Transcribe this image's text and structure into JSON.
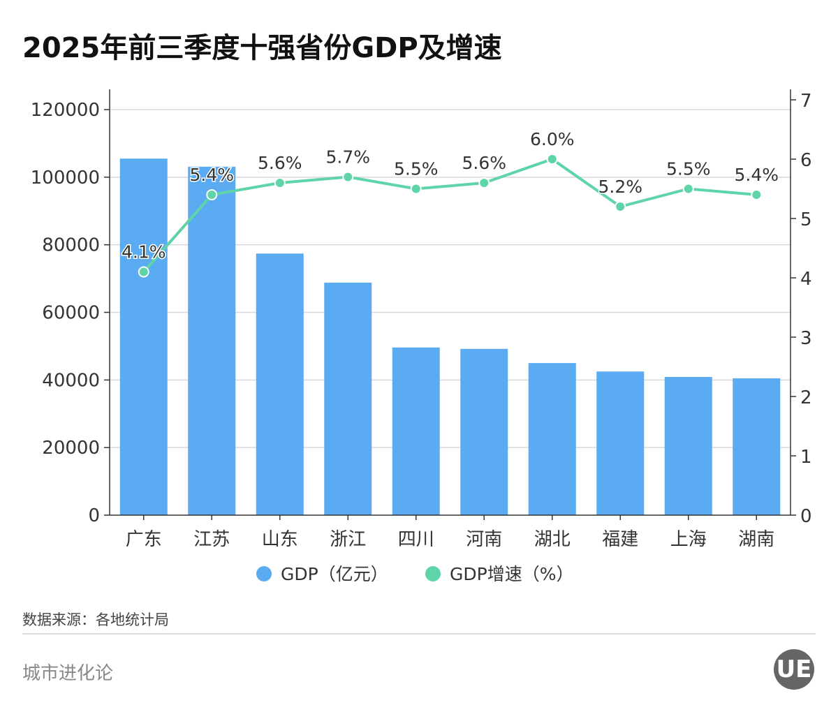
{
  "chart_data": {
    "type": "bar+line",
    "title": "2025年前三季度十强省份GDP及增速",
    "categories": [
      "广东",
      "江苏",
      "山东",
      "浙江",
      "四川",
      "河南",
      "湖北",
      "福建",
      "上海",
      "湖南"
    ],
    "series": [
      {
        "name": "GDP（亿元）",
        "type": "bar",
        "axis": "left",
        "color": "#5aabf2",
        "values": [
          105500,
          103100,
          77400,
          68800,
          49600,
          49200,
          45000,
          42500,
          40900,
          40500
        ]
      },
      {
        "name": "GDP增速（%）",
        "type": "line",
        "axis": "right",
        "color": "#5fd4a8",
        "values": [
          4.1,
          5.4,
          5.6,
          5.7,
          5.5,
          5.6,
          6.0,
          5.2,
          5.5,
          5.4
        ],
        "labels": [
          "4.1%",
          "5.4%",
          "5.6%",
          "5.7%",
          "5.5%",
          "5.6%",
          "6.0%",
          "5.2%",
          "5.5%",
          "5.4%"
        ]
      }
    ],
    "y_left": {
      "lim": [
        0,
        120000
      ],
      "ticks": [
        "0",
        "20000",
        "40000",
        "60000",
        "80000",
        "100000",
        "120000"
      ]
    },
    "y_right": {
      "lim": [
        0,
        7
      ],
      "ticks": [
        "0",
        "1",
        "2",
        "3",
        "4",
        "5",
        "6",
        "7"
      ]
    },
    "grid": true,
    "legend_placement": "bottom"
  },
  "footer": {
    "source": "数据来源：各地统计局",
    "brand": "城市进化论",
    "logo": "UE"
  }
}
